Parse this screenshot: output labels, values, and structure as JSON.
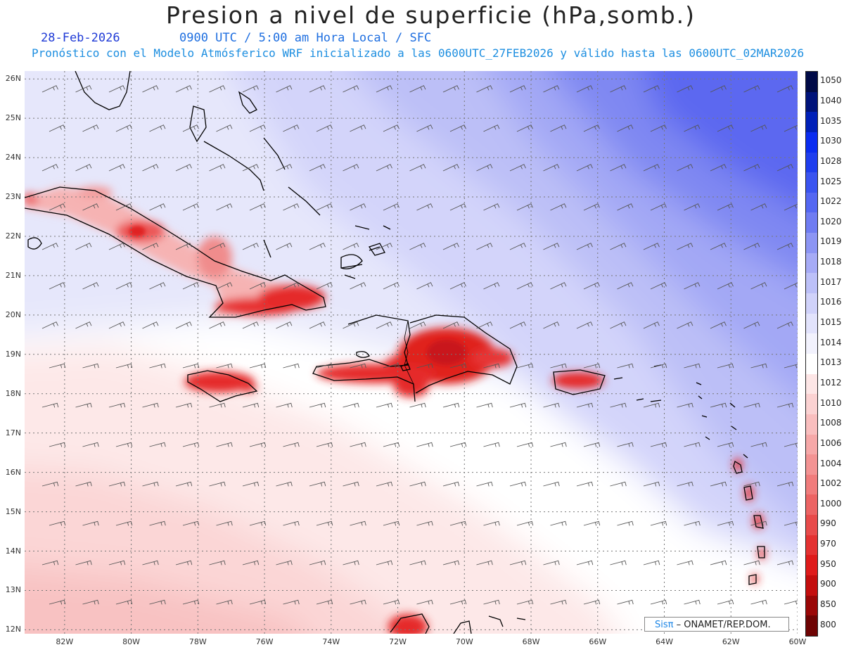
{
  "header": {
    "title": "Presion a nivel de superficie (hPa,somb.)",
    "date": "28-Feb-2026",
    "time_info": "0900 UTC / 5:00 am Hora Local / SFC",
    "model_info": "Pronóstico con el Modelo Atmósferico WRF inicializado a las 0600UTC_27FEB2026 y válido hasta las  0600UTC_02MAR2026"
  },
  "map": {
    "lat_labels": [
      "26N",
      "25N",
      "24N",
      "23N",
      "22N",
      "21N",
      "20N",
      "19N",
      "18N",
      "17N",
      "16N",
      "15N",
      "14N",
      "13N",
      "12N"
    ],
    "lon_labels": [
      "82W",
      "80W",
      "78W",
      "76W",
      "74W",
      "72W",
      "70W",
      "68W",
      "66W",
      "64W",
      "62W",
      "60W"
    ],
    "places": [
      "Cuba",
      "Bahamas",
      "Jamaica",
      "Hispaniola",
      "Puerto Rico",
      "Lesser Antilles"
    ],
    "colors": {
      "land_high": "#e5242c",
      "coast": "#000000",
      "grid": "#777777",
      "barbs": "#555555"
    }
  },
  "colorbar": {
    "levels": [
      "1050",
      "1040",
      "1035",
      "1030",
      "1028",
      "1025",
      "1022",
      "1020",
      "1019",
      "1018",
      "1017",
      "1016",
      "1015",
      "1014",
      "1013",
      "1012",
      "1010",
      "1008",
      "1006",
      "1004",
      "1002",
      "1000",
      "990",
      "970",
      "950",
      "900",
      "850",
      "800"
    ],
    "colors": [
      "#000a46",
      "#00137a",
      "#0020b8",
      "#0a2cf0",
      "#1f3eee",
      "#3a54f0",
      "#5467f2",
      "#6f7cf2",
      "#8c95f4",
      "#a6abf6",
      "#bcc0f8",
      "#d0d2fa",
      "#e2e3fc",
      "#f2f2fd",
      "#ffffff",
      "#fde6e6",
      "#fbd2d2",
      "#f9bebe",
      "#f6a8a8",
      "#f39393",
      "#f07c7c",
      "#ec6464",
      "#e84b4b",
      "#e43232",
      "#df1b1b",
      "#c40e0e",
      "#9a0707",
      "#6e0303"
    ]
  },
  "credit": {
    "sis": "Sisπ",
    "rest": " – ONAMET/REP.DOM."
  }
}
